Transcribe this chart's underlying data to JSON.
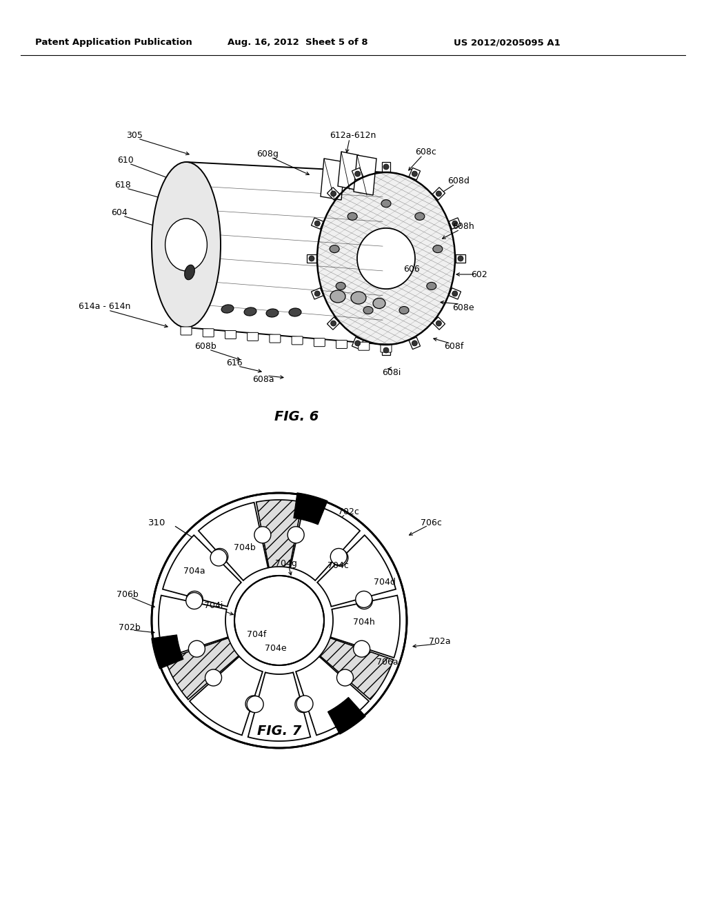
{
  "background_color": "#ffffff",
  "header_left": "Patent Application Publication",
  "header_mid": "Aug. 16, 2012  Sheet 5 of 8",
  "header_right": "US 2012/0205095 A1",
  "fig6_title": "FIG. 6",
  "fig7_title": "FIG. 7"
}
